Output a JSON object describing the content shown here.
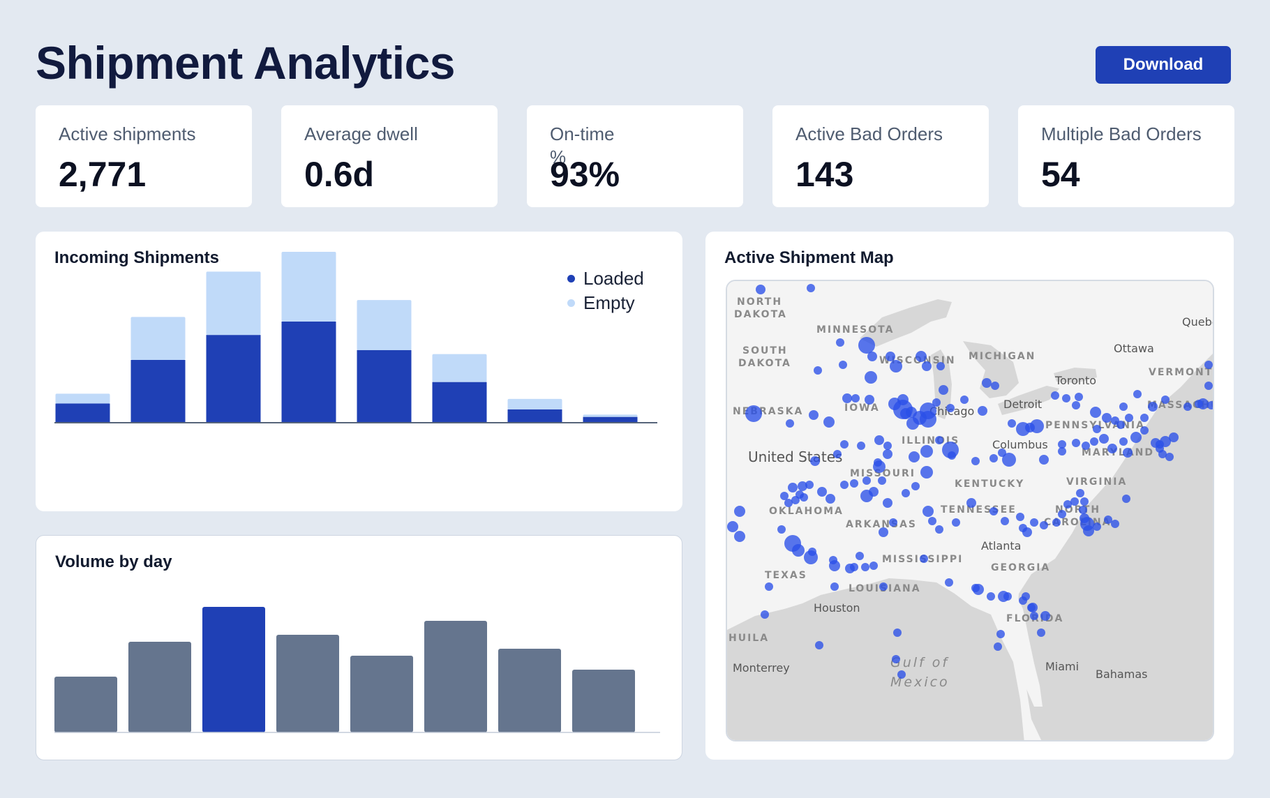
{
  "header": {
    "title": "Shipment Analytics",
    "download_label": "Download"
  },
  "kpis": [
    {
      "label": "Active shipments",
      "value": "2,771"
    },
    {
      "label": "Average dwell",
      "value": "0.6d"
    },
    {
      "label": "On-time %",
      "value": "93%"
    },
    {
      "label": "Active Bad Orders",
      "value": "143"
    },
    {
      "label": "Multiple Bad Orders",
      "value": "54"
    }
  ],
  "incoming": {
    "title": "Incoming Shipments",
    "legend": [
      {
        "label": "Loaded",
        "color": "#1f40b5"
      },
      {
        "label": "Empty",
        "color": "#c0daf9"
      }
    ]
  },
  "volume": {
    "title": "Volume by day"
  },
  "map": {
    "title": "Active Shipment Map",
    "labels": [
      {
        "text": "NORTH",
        "kind": "state"
      },
      {
        "text": "DAKOTA",
        "kind": "state"
      },
      {
        "text": "MINNESOTA",
        "kind": "state"
      },
      {
        "text": "SOUTH",
        "kind": "state"
      },
      {
        "text": "DAKOTA",
        "kind": "state"
      },
      {
        "text": "WISCONSIN",
        "kind": "state"
      },
      {
        "text": "MICHIGAN",
        "kind": "state"
      },
      {
        "text": "Quebe",
        "kind": "city"
      },
      {
        "text": "Ottawa",
        "kind": "city"
      },
      {
        "text": "VERMONT",
        "kind": "state"
      },
      {
        "text": "Toronto",
        "kind": "city"
      },
      {
        "text": "NEBRASKA",
        "kind": "state"
      },
      {
        "text": "IOWA",
        "kind": "state"
      },
      {
        "text": "Chicago",
        "kind": "city"
      },
      {
        "text": "Detroit",
        "kind": "city"
      },
      {
        "text": "MASSACHUS",
        "kind": "state"
      },
      {
        "text": "PENNSYLVANIA",
        "kind": "state"
      },
      {
        "text": "ILLINOIS",
        "kind": "state"
      },
      {
        "text": "Columbus",
        "kind": "city"
      },
      {
        "text": "United States",
        "kind": "country"
      },
      {
        "text": "MARYLAND",
        "kind": "state"
      },
      {
        "text": "MISSOURI",
        "kind": "state"
      },
      {
        "text": "KENTUCKY",
        "kind": "state"
      },
      {
        "text": "VIRGINIA",
        "kind": "state"
      },
      {
        "text": "OKLAHOMA",
        "kind": "state"
      },
      {
        "text": "TENNESSEE",
        "kind": "state"
      },
      {
        "text": "NORTH",
        "kind": "state"
      },
      {
        "text": "CAROLINA",
        "kind": "state"
      },
      {
        "text": "ARKANSAS",
        "kind": "state"
      },
      {
        "text": "Atlanta",
        "kind": "city"
      },
      {
        "text": "MISSISSIPPI",
        "kind": "state"
      },
      {
        "text": "GEORGIA",
        "kind": "state"
      },
      {
        "text": "TEXAS",
        "kind": "state"
      },
      {
        "text": "LOUISIANA",
        "kind": "state"
      },
      {
        "text": "Houston",
        "kind": "city"
      },
      {
        "text": "FLORIDA",
        "kind": "state"
      },
      {
        "text": "HUILA",
        "kind": "state"
      },
      {
        "text": "Gulf of",
        "kind": "water"
      },
      {
        "text": "Mexico",
        "kind": "water"
      },
      {
        "text": "Monterrey",
        "kind": "city"
      },
      {
        "text": "Miami",
        "kind": "city"
      },
      {
        "text": "Bahamas",
        "kind": "city"
      }
    ]
  },
  "chart_data": [
    {
      "type": "bar",
      "stacked": true,
      "title": "Incoming Shipments",
      "categories": [
        "",
        "",
        "",
        "",
        "",
        "",
        "",
        ""
      ],
      "series": [
        {
          "name": "Loaded",
          "color": "#1f40b5",
          "values": [
            33,
            108,
            151,
            174,
            125,
            70,
            23,
            10
          ]
        },
        {
          "name": "Empty",
          "color": "#c0daf9",
          "values": [
            17,
            74,
            109,
            120,
            86,
            48,
            18,
            4
          ]
        }
      ],
      "ylim": [
        0,
        300
      ],
      "legend": "top-right",
      "grid": false
    },
    {
      "type": "bar",
      "title": "Volume by day",
      "categories": [
        "",
        "",
        "",
        "",
        "",
        "",
        "",
        ""
      ],
      "values": [
        80,
        130,
        180,
        140,
        110,
        160,
        120,
        90
      ],
      "colors": [
        "#65758e",
        "#65758e",
        "#1f40b5",
        "#65758e",
        "#65758e",
        "#65758e",
        "#65758e",
        "#65758e"
      ],
      "ylim": [
        0,
        200
      ],
      "grid": false
    }
  ]
}
